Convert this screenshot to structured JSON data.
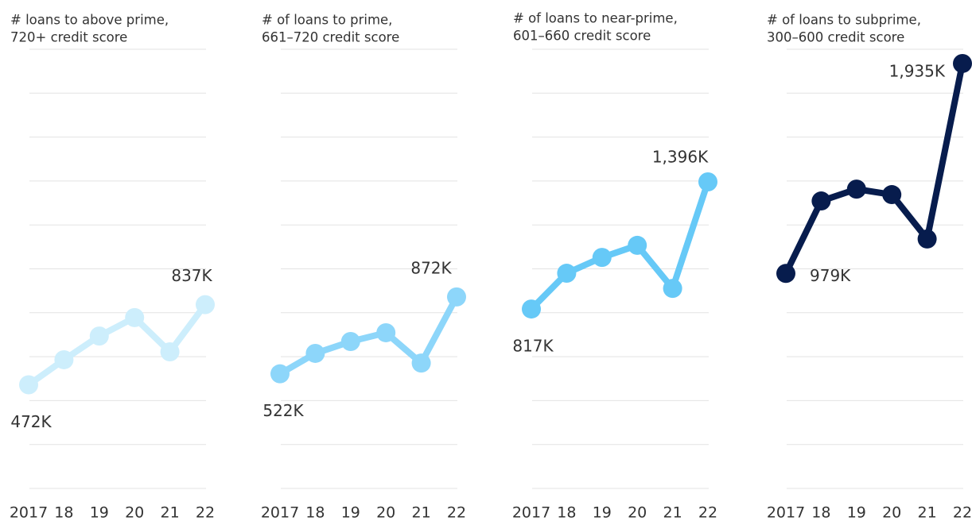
{
  "chart_data": [
    {
      "type": "line",
      "title": [
        "# loans to above prime,",
        "720+ credit score"
      ],
      "categories": [
        "2017",
        "18",
        "19",
        "20",
        "21",
        "22"
      ],
      "values": [
        472,
        586,
        694,
        778,
        622,
        837
      ],
      "value_labels": [
        "472K",
        null,
        null,
        null,
        null,
        "837K"
      ],
      "color": "#cdeefc",
      "ylim": [
        0,
        2000
      ],
      "yticks": [
        0,
        200,
        400,
        600,
        800,
        1000,
        1200,
        1400,
        1600,
        1800,
        2000
      ],
      "grid": true
    },
    {
      "type": "line",
      "title": [
        "# of loans to prime,",
        "661–720 credit score"
      ],
      "categories": [
        "2017",
        "18",
        "19",
        "20",
        "21",
        "22"
      ],
      "values": [
        522,
        615,
        669,
        709,
        571,
        872
      ],
      "value_labels": [
        "522K",
        null,
        null,
        null,
        null,
        "872K"
      ],
      "color": "#8dd6fa",
      "ylim": [
        0,
        2000
      ],
      "yticks": [
        0,
        200,
        400,
        600,
        800,
        1000,
        1200,
        1400,
        1600,
        1800,
        2000
      ],
      "grid": true
    },
    {
      "type": "line",
      "title": [
        "# of loans to near-prime,",
        "601–660 credit score"
      ],
      "categories": [
        "2017",
        "18",
        "19",
        "20",
        "21",
        "22"
      ],
      "values": [
        817,
        980,
        1052,
        1107,
        911,
        1396
      ],
      "value_labels": [
        "817K",
        null,
        null,
        null,
        null,
        "1,396K"
      ],
      "color": "#66c9f7",
      "ylim": [
        0,
        2000
      ],
      "yticks": [
        0,
        200,
        400,
        600,
        800,
        1000,
        1200,
        1400,
        1600,
        1800,
        2000
      ],
      "grid": true
    },
    {
      "type": "line",
      "title": [
        "# of loans to subprime,",
        "300–600 credit score"
      ],
      "categories": [
        "2017",
        "18",
        "19",
        "20",
        "21",
        "22"
      ],
      "values": [
        979,
        1309,
        1363,
        1338,
        1136,
        1935
      ],
      "value_labels": [
        "979K",
        null,
        null,
        null,
        null,
        "1,935K"
      ],
      "color": "#071c4d",
      "ylim": [
        0,
        2000
      ],
      "yticks": [
        0,
        200,
        400,
        600,
        800,
        1000,
        1200,
        1400,
        1600,
        1800,
        2000
      ],
      "grid": true
    }
  ]
}
